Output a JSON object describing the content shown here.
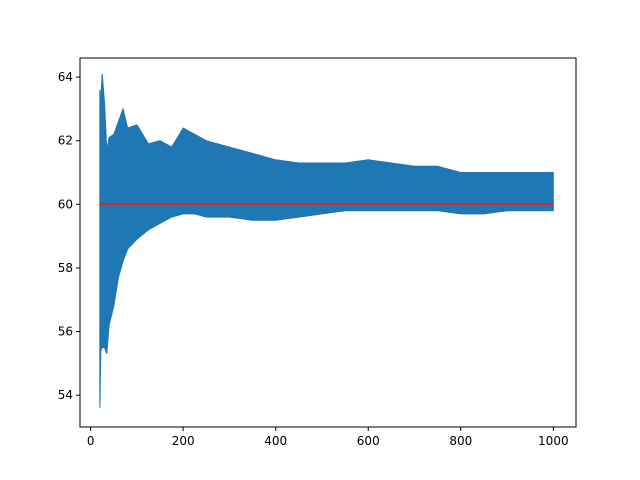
{
  "chart_data": {
    "type": "line",
    "title": "",
    "xlabel": "",
    "ylabel": "",
    "xlim": [
      -23,
      1049
    ],
    "ylim": [
      53.0,
      64.6
    ],
    "xticks": [
      {
        "value": 0,
        "label": "0"
      },
      {
        "value": 200,
        "label": "200"
      },
      {
        "value": 400,
        "label": "400"
      },
      {
        "value": 600,
        "label": "600"
      },
      {
        "value": 800,
        "label": "800"
      },
      {
        "value": 1000,
        "label": "1000"
      }
    ],
    "yticks": [
      {
        "value": 54,
        "label": "54"
      },
      {
        "value": 56,
        "label": "56"
      },
      {
        "value": 58,
        "label": "58"
      },
      {
        "value": 60,
        "label": "60"
      },
      {
        "value": 62,
        "label": "62"
      },
      {
        "value": 64,
        "label": "64"
      }
    ],
    "grid": false,
    "series": [
      {
        "kind": "band",
        "color": "#1f77b4",
        "x": [
          20,
          22,
          25,
          30,
          35,
          40,
          50,
          60,
          70,
          80,
          100,
          125,
          150,
          175,
          200,
          225,
          250,
          300,
          350,
          400,
          450,
          500,
          550,
          600,
          650,
          700,
          750,
          800,
          850,
          900,
          950,
          1000
        ],
        "upper": [
          63.6,
          63.3,
          64.1,
          63.2,
          61.7,
          62.1,
          62.2,
          62.6,
          63.0,
          62.4,
          62.5,
          61.9,
          62.0,
          61.8,
          62.4,
          62.2,
          62.0,
          61.8,
          61.6,
          61.4,
          61.3,
          61.3,
          61.3,
          61.4,
          61.3,
          61.2,
          61.2,
          61.0,
          61.0,
          61.0,
          61.0,
          61.0
        ],
        "lower": [
          53.6,
          55.4,
          55.5,
          55.5,
          55.3,
          56.2,
          56.8,
          57.7,
          58.2,
          58.6,
          58.9,
          59.2,
          59.4,
          59.6,
          59.7,
          59.7,
          59.6,
          59.6,
          59.5,
          59.5,
          59.6,
          59.7,
          59.8,
          59.8,
          59.8,
          59.8,
          59.8,
          59.7,
          59.7,
          59.8,
          59.8,
          59.8
        ]
      },
      {
        "kind": "line",
        "color": "#d62728",
        "x": [
          20,
          1000
        ],
        "values": [
          60,
          60
        ]
      }
    ]
  }
}
